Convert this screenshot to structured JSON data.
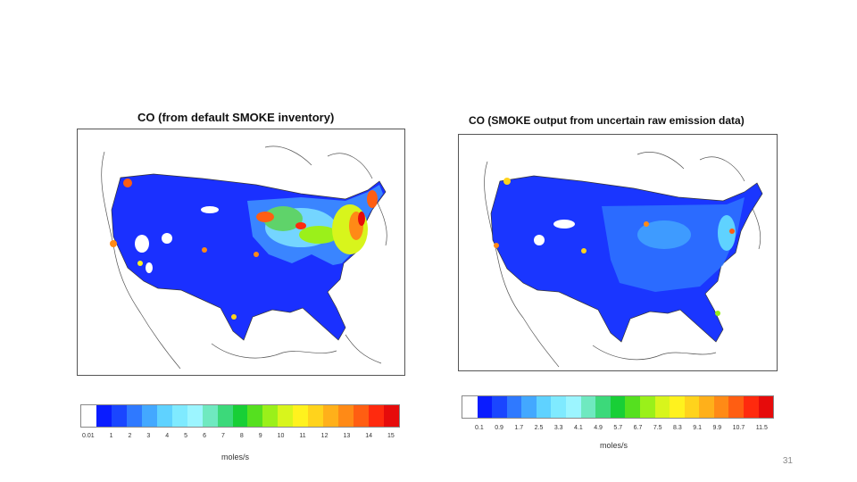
{
  "left": {
    "title": "CO (from default SMOKE inventory)",
    "colorbar_ticks": [
      "0.01",
      "1",
      "2",
      "3",
      "4",
      "5",
      "6",
      "7",
      "8",
      "9",
      "10",
      "11",
      "12",
      "13",
      "14",
      "15"
    ],
    "unit": "moles/s"
  },
  "right": {
    "title": "CO (SMOKE output from uncertain raw emission data)",
    "colorbar_ticks": [
      "0.1",
      "0.9",
      "1.7",
      "2.5",
      "3.3",
      "4.1",
      "4.9",
      "5.7",
      "6.7",
      "7.5",
      "8.3",
      "9.1",
      "9.9",
      "10.7",
      "11.5"
    ],
    "unit": "moles/s"
  },
  "palette": [
    "#ffffff",
    "#0a1cff",
    "#1a46ff",
    "#2f79ff",
    "#43a8ff",
    "#5fd2ff",
    "#7feaff",
    "#9cf5ff",
    "#6fe9c0",
    "#3cd97a",
    "#18cf36",
    "#55e01f",
    "#9af01a",
    "#d8f51c",
    "#fff21e",
    "#ffd31c",
    "#ffb01a",
    "#ff8a16",
    "#ff5e12",
    "#ff2a0e",
    "#e60b0b"
  ],
  "page_number": "31"
}
